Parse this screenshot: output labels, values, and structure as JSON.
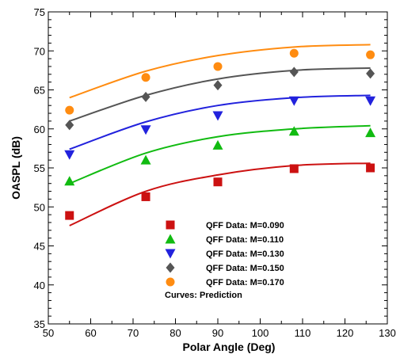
{
  "chart_data": {
    "type": "scatter",
    "title": "",
    "xlabel": "Polar Angle (Deg)",
    "ylabel": "OASPL (dB)",
    "xlim": [
      50,
      130
    ],
    "ylim": [
      35,
      75
    ],
    "x_ticks": [
      50,
      60,
      70,
      80,
      90,
      100,
      110,
      120,
      130
    ],
    "y_ticks": [
      35,
      40,
      45,
      50,
      55,
      60,
      65,
      70,
      75
    ],
    "grid": false,
    "legend_position": "bottom-center",
    "curves_note": "Curves: Prediction",
    "series": [
      {
        "name": "QFF Data: M=0.090",
        "marker": "square",
        "color": "#cc1111",
        "points": [
          [
            55,
            48.9
          ],
          [
            73,
            51.3
          ],
          [
            90,
            53.2
          ],
          [
            108,
            54.9
          ],
          [
            126,
            55.0
          ]
        ],
        "prediction": [
          [
            55,
            47.6
          ],
          [
            73,
            52.0
          ],
          [
            90,
            54.1
          ],
          [
            108,
            55.3
          ],
          [
            126,
            55.6
          ]
        ]
      },
      {
        "name": "QFF Data: M=0.110",
        "marker": "triangle-up",
        "color": "#11bb11",
        "points": [
          [
            55,
            53.3
          ],
          [
            73,
            56.0
          ],
          [
            90,
            57.9
          ],
          [
            108,
            59.7
          ],
          [
            126,
            59.5
          ]
        ],
        "prediction": [
          [
            55,
            53.0
          ],
          [
            73,
            56.9
          ],
          [
            90,
            59.0
          ],
          [
            108,
            60.0
          ],
          [
            126,
            60.4
          ]
        ]
      },
      {
        "name": "QFF Data: M=0.130",
        "marker": "triangle-down",
        "color": "#2222dd",
        "points": [
          [
            55,
            56.7
          ],
          [
            73,
            59.9
          ],
          [
            90,
            61.7
          ],
          [
            108,
            63.6
          ],
          [
            126,
            63.6
          ]
        ],
        "prediction": [
          [
            55,
            57.4
          ],
          [
            73,
            60.9
          ],
          [
            90,
            63.0
          ],
          [
            108,
            64.0
          ],
          [
            126,
            64.3
          ]
        ]
      },
      {
        "name": "QFF Data: M=0.150",
        "marker": "diamond",
        "color": "#555555",
        "points": [
          [
            55,
            60.5
          ],
          [
            73,
            64.1
          ],
          [
            90,
            65.6
          ],
          [
            108,
            67.3
          ],
          [
            126,
            67.1
          ]
        ],
        "prediction": [
          [
            55,
            61.0
          ],
          [
            73,
            64.3
          ],
          [
            90,
            66.4
          ],
          [
            108,
            67.5
          ],
          [
            126,
            67.8
          ]
        ]
      },
      {
        "name": "QFF Data: M=0.170",
        "marker": "circle",
        "color": "#ff8c11",
        "points": [
          [
            55,
            62.4
          ],
          [
            73,
            66.6
          ],
          [
            90,
            68.0
          ],
          [
            108,
            69.7
          ],
          [
            126,
            69.5
          ]
        ],
        "prediction": [
          [
            55,
            64.0
          ],
          [
            73,
            67.4
          ],
          [
            90,
            69.4
          ],
          [
            108,
            70.5
          ],
          [
            126,
            70.8
          ]
        ]
      }
    ]
  }
}
